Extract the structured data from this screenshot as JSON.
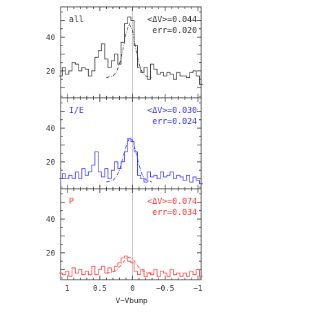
{
  "figure": {
    "xlabel": "V−Vbump",
    "x_ticks": [
      "1",
      "0.5",
      "0",
      "−0.5",
      "−1"
    ],
    "y_ticks": [
      "20",
      "40"
    ]
  },
  "chart_data": [
    {
      "type": "line",
      "panel_label": "all",
      "stat_line1": "<ΔV>=0.044",
      "stat_line2": "err=0.020",
      "color": "#333333",
      "xlim": [
        1.1,
        -1.05
      ],
      "ylim": [
        4,
        58
      ],
      "reference_x": 0,
      "series": [
        {
          "x": [
            1.1,
            1.05,
            1.0,
            0.95,
            0.9,
            0.85,
            0.8,
            0.75,
            0.7,
            0.65,
            0.6,
            0.55,
            0.5,
            0.45,
            0.4,
            0.35,
            0.3,
            0.25,
            0.2,
            0.15,
            0.1,
            0.05,
            0.0,
            -0.05,
            -0.1,
            -0.15,
            -0.2,
            -0.25,
            -0.3,
            -0.35,
            -0.4,
            -0.45,
            -0.5,
            -0.55,
            -0.6,
            -0.65,
            -0.7,
            -0.75,
            -0.8,
            -0.85,
            -0.9,
            -0.95,
            -1.0,
            -1.05
          ],
          "y": [
            17,
            22,
            18,
            20,
            25,
            24,
            20,
            22,
            21,
            17,
            20,
            28,
            32,
            36,
            27,
            22,
            26,
            30,
            24,
            37,
            48,
            52,
            50,
            35,
            22,
            19,
            22,
            15,
            24,
            21,
            18,
            19,
            17,
            19,
            18,
            15,
            19,
            17,
            17,
            16,
            19,
            20,
            17,
            12
          ]
        },
        {
          "x": [
            0.4,
            0.35,
            0.3,
            0.25,
            0.2,
            0.15,
            0.1,
            0.05,
            0.0,
            -0.05,
            -0.1,
            -0.15,
            -0.2,
            -0.25,
            -0.3
          ],
          "y": [
            16,
            16.5,
            17,
            19,
            24,
            32,
            42,
            48,
            44,
            33,
            24,
            19,
            17,
            16.5,
            16
          ]
        }
      ]
    },
    {
      "type": "line",
      "panel_label": "I/E",
      "stat_line1": "<ΔV>=0.030",
      "stat_line2": "err=0.024",
      "color": "#3333ff",
      "xlim": [
        1.1,
        -1.05
      ],
      "ylim": [
        4,
        58
      ],
      "reference_x": 0,
      "series": [
        {
          "x": [
            1.1,
            1.05,
            1.0,
            0.95,
            0.9,
            0.85,
            0.8,
            0.75,
            0.7,
            0.65,
            0.6,
            0.55,
            0.5,
            0.45,
            0.4,
            0.35,
            0.3,
            0.25,
            0.2,
            0.15,
            0.1,
            0.05,
            0.0,
            -0.05,
            -0.1,
            -0.15,
            -0.2,
            -0.25,
            -0.3,
            -0.35,
            -0.4,
            -0.45,
            -0.5,
            -0.55,
            -0.6,
            -0.65,
            -0.7,
            -0.75,
            -0.8,
            -0.85,
            -0.9,
            -0.95,
            -1.0,
            -1.05
          ],
          "y": [
            10,
            13,
            10,
            12,
            10,
            14,
            10,
            16,
            12,
            14,
            18,
            26,
            14,
            11,
            16,
            10,
            15,
            20,
            16,
            20,
            26,
            34,
            32,
            26,
            12,
            10,
            8,
            14,
            11,
            12,
            10,
            14,
            11,
            12,
            14,
            10,
            12,
            11,
            9,
            12,
            8,
            11,
            9,
            7
          ]
        },
        {
          "x": [
            0.4,
            0.35,
            0.3,
            0.25,
            0.2,
            0.15,
            0.1,
            0.05,
            0.0,
            -0.05,
            -0.1,
            -0.15,
            -0.2,
            -0.25,
            -0.3
          ],
          "y": [
            8,
            8.5,
            9,
            11,
            15,
            22,
            29,
            34,
            33,
            26,
            18,
            12,
            9.5,
            8.5,
            8
          ]
        }
      ]
    },
    {
      "type": "line",
      "panel_label": "P",
      "stat_line1": "<ΔV>=0.074",
      "stat_line2": "err=0.034",
      "color": "#ff3333",
      "xlim": [
        1.1,
        -1.05
      ],
      "ylim": [
        4,
        58
      ],
      "reference_x": 0,
      "series": [
        {
          "x": [
            1.1,
            1.05,
            1.0,
            0.95,
            0.9,
            0.85,
            0.8,
            0.75,
            0.7,
            0.65,
            0.6,
            0.55,
            0.5,
            0.45,
            0.4,
            0.35,
            0.3,
            0.25,
            0.2,
            0.15,
            0.1,
            0.05,
            0.0,
            -0.05,
            -0.1,
            -0.15,
            -0.2,
            -0.25,
            -0.3,
            -0.35,
            -0.4,
            -0.45,
            -0.5,
            -0.55,
            -0.6,
            -0.65,
            -0.7,
            -0.75,
            -0.8,
            -0.85,
            -0.9,
            -0.95,
            -1.0,
            -1.05
          ],
          "y": [
            8,
            7,
            9,
            6,
            11,
            8,
            10,
            7,
            9,
            7,
            12,
            7,
            10,
            12,
            8,
            11,
            9,
            12,
            14,
            17,
            18,
            15,
            14,
            9,
            7,
            10,
            6,
            8,
            7,
            10,
            6,
            9,
            8,
            6,
            10,
            7,
            8,
            6,
            8,
            6,
            9,
            7,
            10,
            6
          ]
        },
        {
          "x": [
            0.4,
            0.35,
            0.3,
            0.25,
            0.2,
            0.15,
            0.1,
            0.05,
            0.0,
            -0.05,
            -0.1,
            -0.15,
            -0.2,
            -0.25,
            -0.3
          ],
          "y": [
            8,
            8.2,
            8.5,
            9.5,
            11.5,
            14,
            16.5,
            17.5,
            16.5,
            14,
            11,
            9.2,
            8.5,
            8.2,
            8
          ]
        }
      ]
    }
  ]
}
